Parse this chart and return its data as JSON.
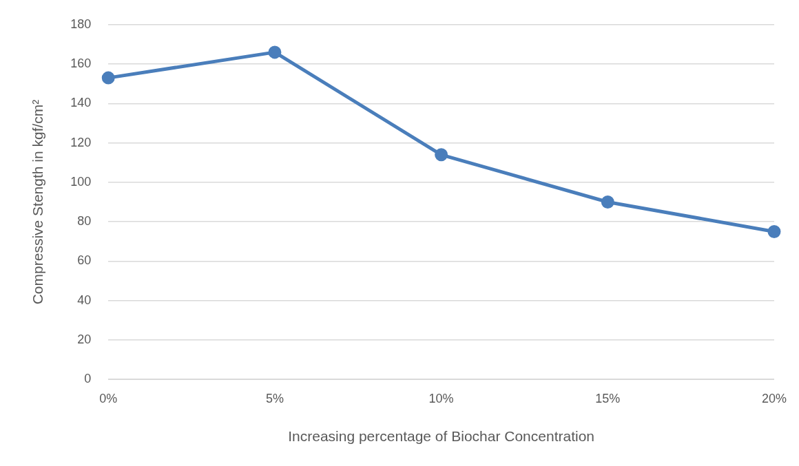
{
  "chart_data": {
    "type": "line",
    "xlabel": "Increasing percentage of Biochar Concentration",
    "ylabel": "Compressive Stength in kgf/cm²",
    "categories": [
      "0%",
      "5%",
      "10%",
      "15%",
      "20%"
    ],
    "series": [
      {
        "color": "#4a7ebb",
        "values": [
          153,
          166,
          114,
          90,
          75
        ]
      }
    ],
    "ylim": [
      0,
      180
    ],
    "yticks": [
      0,
      20,
      40,
      60,
      80,
      100,
      120,
      140,
      160,
      180
    ],
    "grid": "y",
    "legend": false,
    "marker": "circle",
    "line_style": "solid"
  }
}
